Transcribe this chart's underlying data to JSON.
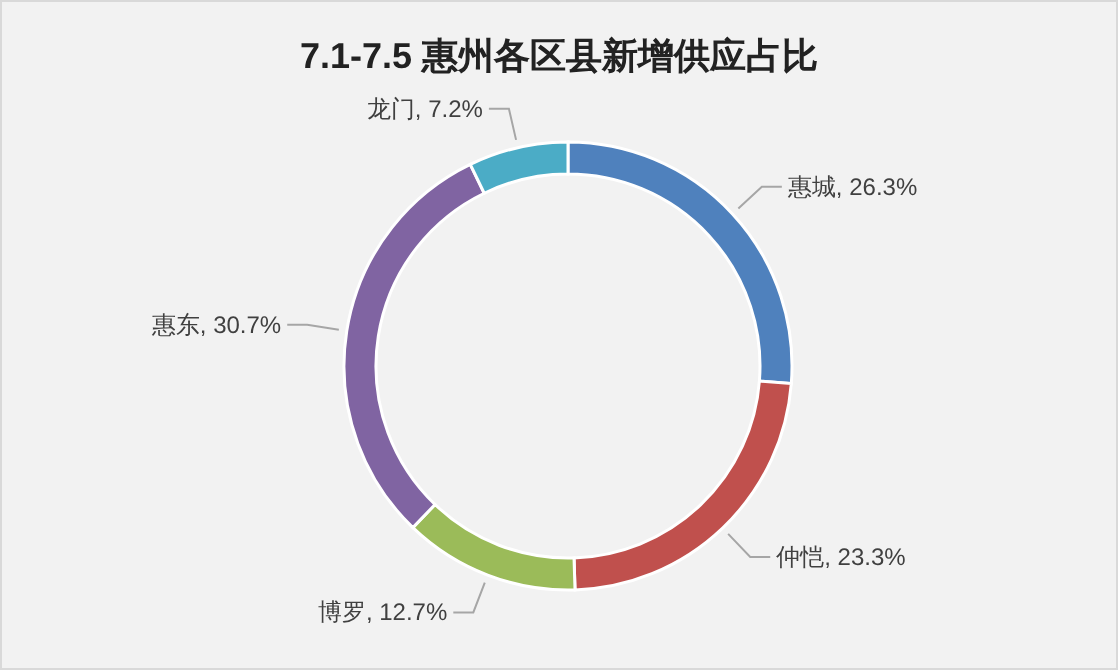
{
  "chart_data": {
    "type": "donut",
    "title": "7.1-7.5 惠州各区县新增供应占比",
    "categories": [
      "惠城",
      "仲恺",
      "博罗",
      "惠东",
      "龙门"
    ],
    "values": [
      26.3,
      23.3,
      12.7,
      30.7,
      7.2
    ],
    "value_labels": [
      "26.3%",
      "23.3%",
      "12.7%",
      "30.7%",
      "7.2%"
    ],
    "colors": [
      "#4f81bd",
      "#c0504d",
      "#9bbb59",
      "#8064a2",
      "#4bacc6"
    ]
  }
}
